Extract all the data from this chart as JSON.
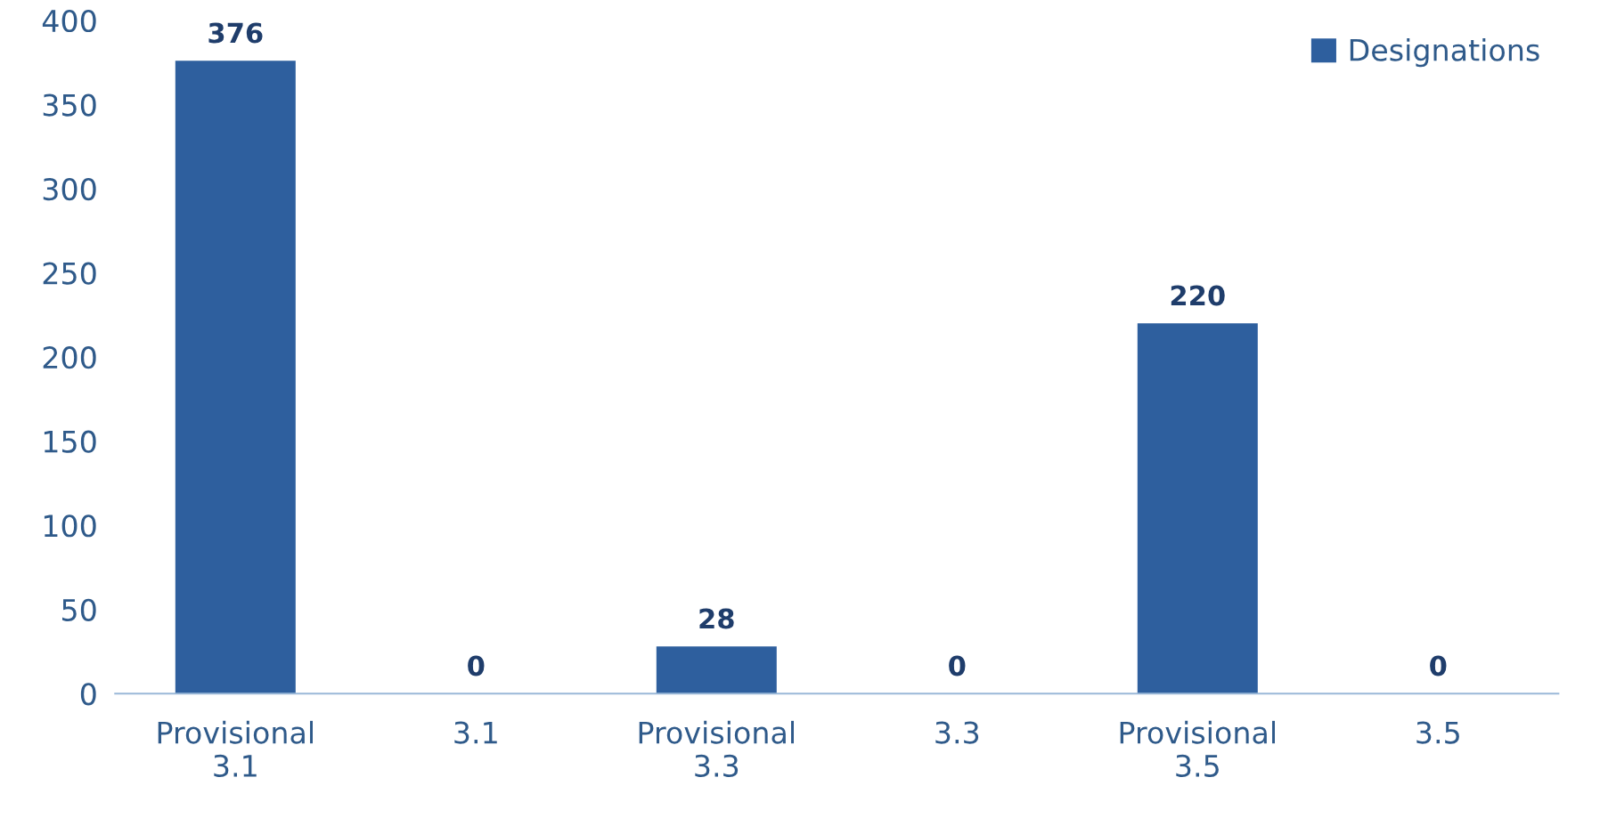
{
  "chart_data": {
    "type": "bar",
    "categories": [
      "Provisional 3.1",
      "3.1",
      "Provisional 3.3",
      "3.3",
      "Provisional 3.5",
      "3.5"
    ],
    "series": [
      {
        "name": "Designations",
        "color": "#2e5f9e",
        "values": [
          376,
          0,
          28,
          0,
          220,
          0
        ]
      }
    ],
    "ylim": [
      0,
      400
    ],
    "yticks": [
      0,
      50,
      100,
      150,
      200,
      250,
      300,
      350,
      400
    ],
    "data_labels": true,
    "legend": "top right",
    "grid": false
  }
}
